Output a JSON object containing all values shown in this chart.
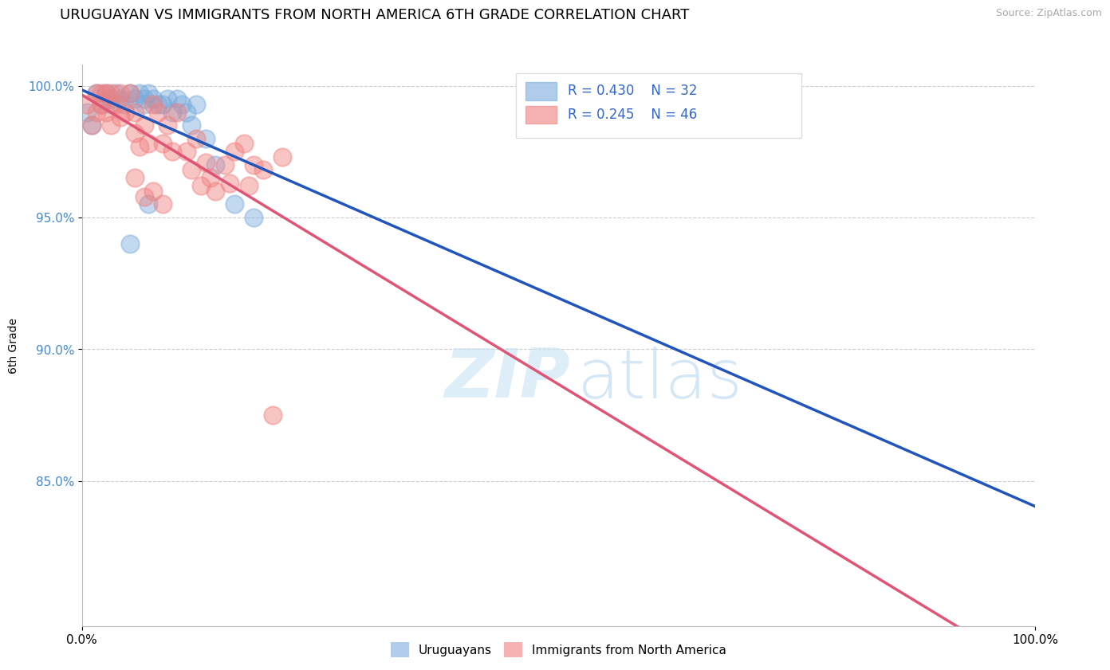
{
  "title": "URUGUAYAN VS IMMIGRANTS FROM NORTH AMERICA 6TH GRADE CORRELATION CHART",
  "source_text": "Source: ZipAtlas.com",
  "ylabel": "6th Grade",
  "xlim": [
    0.0,
    1.0
  ],
  "ylim": [
    0.795,
    1.008
  ],
  "yticks": [
    0.85,
    0.9,
    0.95,
    1.0
  ],
  "ytick_labels": [
    "85.0%",
    "90.0%",
    "95.0%",
    "100.0%"
  ],
  "xticks": [
    0.0,
    1.0
  ],
  "xtick_labels": [
    "0.0%",
    "100.0%"
  ],
  "blue_R": 0.43,
  "blue_N": 32,
  "pink_R": 0.245,
  "pink_N": 46,
  "background_color": "#ffffff",
  "blue_color": "#7aabdc",
  "pink_color": "#f08080",
  "blue_line_color": "#2255bb",
  "pink_line_color": "#e05575",
  "blue_scatter_x": [
    0.005,
    0.01,
    0.015,
    0.02,
    0.025,
    0.03,
    0.03,
    0.035,
    0.04,
    0.045,
    0.05,
    0.055,
    0.06,
    0.065,
    0.065,
    0.07,
    0.075,
    0.08,
    0.085,
    0.09,
    0.095,
    0.1,
    0.105,
    0.11,
    0.115,
    0.12,
    0.13,
    0.14,
    0.16,
    0.18,
    0.07,
    0.05
  ],
  "blue_scatter_y": [
    0.99,
    0.985,
    0.997,
    0.993,
    0.997,
    0.995,
    0.993,
    0.997,
    0.995,
    0.993,
    0.997,
    0.995,
    0.997,
    0.995,
    0.993,
    0.997,
    0.995,
    0.993,
    0.993,
    0.995,
    0.99,
    0.995,
    0.993,
    0.99,
    0.985,
    0.993,
    0.98,
    0.97,
    0.955,
    0.95,
    0.955,
    0.94
  ],
  "pink_scatter_x": [
    0.005,
    0.01,
    0.015,
    0.015,
    0.02,
    0.02,
    0.025,
    0.025,
    0.03,
    0.03,
    0.035,
    0.04,
    0.04,
    0.045,
    0.05,
    0.055,
    0.055,
    0.06,
    0.065,
    0.07,
    0.075,
    0.08,
    0.085,
    0.09,
    0.095,
    0.1,
    0.11,
    0.115,
    0.12,
    0.125,
    0.13,
    0.135,
    0.14,
    0.15,
    0.155,
    0.16,
    0.17,
    0.175,
    0.18,
    0.19,
    0.2,
    0.21,
    0.055,
    0.065,
    0.075,
    0.085
  ],
  "pink_scatter_y": [
    0.993,
    0.985,
    0.997,
    0.99,
    0.997,
    0.993,
    0.997,
    0.99,
    0.997,
    0.985,
    0.993,
    0.997,
    0.988,
    0.99,
    0.997,
    0.99,
    0.982,
    0.977,
    0.985,
    0.978,
    0.993,
    0.99,
    0.978,
    0.985,
    0.975,
    0.99,
    0.975,
    0.968,
    0.98,
    0.962,
    0.971,
    0.965,
    0.96,
    0.97,
    0.963,
    0.975,
    0.978,
    0.962,
    0.97,
    0.968,
    0.875,
    0.973,
    0.965,
    0.958,
    0.96,
    0.955
  ],
  "legend_labels": [
    "Uruguayans",
    "Immigrants from North America"
  ],
  "watermark_zip": "ZIP",
  "watermark_atlas": "atlas",
  "title_fontsize": 13,
  "label_fontsize": 10,
  "tick_fontsize": 11
}
